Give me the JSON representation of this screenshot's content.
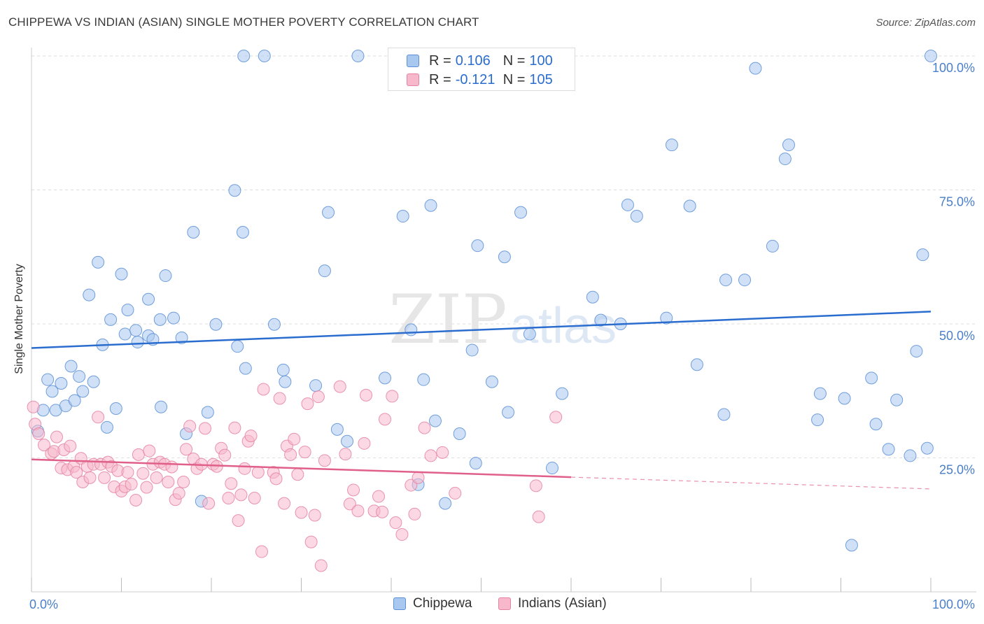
{
  "title": "CHIPPEWA VS INDIAN (ASIAN) SINGLE MOTHER POVERTY CORRELATION CHART",
  "source": "Source: ZipAtlas.com",
  "watermark": {
    "zip": "ZIP",
    "atlas": "atlas"
  },
  "legend_box": {
    "rows": [
      {
        "r_label": "R =",
        "r_value": "0.106",
        "n_label": "N =",
        "n_value": "100"
      },
      {
        "r_label": "R =",
        "r_value": "-0.121",
        "n_label": "N =",
        "n_value": "105"
      }
    ]
  },
  "bottom_legend": {
    "series1": "Chippewa",
    "series2": "Indians (Asian)"
  },
  "colors": {
    "chippewa_fill": "#a9c8f0",
    "chippewa_stroke": "#5b8fd6",
    "chippewa_line": "#2a6dcf",
    "asian_fill": "#f7b8cc",
    "asian_stroke": "#e582a3",
    "asian_line": "#e0608a",
    "tick_text": "#4a7fc9",
    "grid": "#dddddd"
  },
  "chart_data": {
    "type": "scatter",
    "title": "CHIPPEWA VS INDIAN (ASIAN) SINGLE MOTHER POVERTY CORRELATION CHART",
    "xlabel": "",
    "ylabel": "Single Mother Poverty",
    "xlim": [
      0,
      100
    ],
    "ylim": [
      0,
      100
    ],
    "x_tick_labels": [
      "0.0%",
      "100.0%"
    ],
    "y_ticks": [
      25,
      50,
      75,
      100
    ],
    "y_tick_labels": [
      "25.0%",
      "50.0%",
      "75.0%",
      "100.0%"
    ],
    "grid": true,
    "series": [
      {
        "name": "Chippewa",
        "trend": {
          "x": [
            0,
            100
          ],
          "y": [
            45.5,
            52.3
          ],
          "dashed_from": null
        },
        "points": [
          [
            0.7,
            30.0
          ],
          [
            1.3,
            33.9
          ],
          [
            1.8,
            39.6
          ],
          [
            2.3,
            37.4
          ],
          [
            2.7,
            33.9
          ],
          [
            3.3,
            38.9
          ],
          [
            3.8,
            34.7
          ],
          [
            4.4,
            42.1
          ],
          [
            4.8,
            35.7
          ],
          [
            5.3,
            40.2
          ],
          [
            5.7,
            37.4
          ],
          [
            6.4,
            55.4
          ],
          [
            6.9,
            39.2
          ],
          [
            7.4,
            61.5
          ],
          [
            7.9,
            46.1
          ],
          [
            8.4,
            30.7
          ],
          [
            8.8,
            50.8
          ],
          [
            9.4,
            34.2
          ],
          [
            10.0,
            59.3
          ],
          [
            10.4,
            48.1
          ],
          [
            10.7,
            52.6
          ],
          [
            11.6,
            48.8
          ],
          [
            11.8,
            46.6
          ],
          [
            13.0,
            47.8
          ],
          [
            13.5,
            47.1
          ],
          [
            13.0,
            54.6
          ],
          [
            14.3,
            50.8
          ],
          [
            14.4,
            34.5
          ],
          [
            14.9,
            59.0
          ],
          [
            15.8,
            51.1
          ],
          [
            16.7,
            47.4
          ],
          [
            17.2,
            29.5
          ],
          [
            18.0,
            67.1
          ],
          [
            18.9,
            16.9
          ],
          [
            19.6,
            33.5
          ],
          [
            20.5,
            49.9
          ],
          [
            22.6,
            74.9
          ],
          [
            22.9,
            45.8
          ],
          [
            23.5,
            67.1
          ],
          [
            23.8,
            41.7
          ],
          [
            23.6,
            100
          ],
          [
            25.9,
            100
          ],
          [
            27.0,
            49.9
          ],
          [
            28.0,
            41.4
          ],
          [
            28.2,
            39.2
          ],
          [
            31.6,
            38.5
          ],
          [
            32.6,
            59.9
          ],
          [
            33.0,
            70.8
          ],
          [
            34.0,
            30.3
          ],
          [
            35.1,
            28.1
          ],
          [
            36.3,
            100
          ],
          [
            39.3,
            39.9
          ],
          [
            41.3,
            70.1
          ],
          [
            42.2,
            48.9
          ],
          [
            43.0,
            20.0
          ],
          [
            43.6,
            39.6
          ],
          [
            44.4,
            72.1
          ],
          [
            44.9,
            31.9
          ],
          [
            46.0,
            16.5
          ],
          [
            47.6,
            29.5
          ],
          [
            49.0,
            45.1
          ],
          [
            49.4,
            24.0
          ],
          [
            49.6,
            64.6
          ],
          [
            51.2,
            39.2
          ],
          [
            52.6,
            62.5
          ],
          [
            53.0,
            33.5
          ],
          [
            54.4,
            70.8
          ],
          [
            55.4,
            48.1
          ],
          [
            57.9,
            23.1
          ],
          [
            59.0,
            37.0
          ],
          [
            62.4,
            55.0
          ],
          [
            63.3,
            50.7
          ],
          [
            65.5,
            50.0
          ],
          [
            66.3,
            72.2
          ],
          [
            67.3,
            70.1
          ],
          [
            70.6,
            51.1
          ],
          [
            71.2,
            83.4
          ],
          [
            73.2,
            72.0
          ],
          [
            74.0,
            42.4
          ],
          [
            77.0,
            33.1
          ],
          [
            77.2,
            58.2
          ],
          [
            79.3,
            58.2
          ],
          [
            80.5,
            97.7
          ],
          [
            82.4,
            64.5
          ],
          [
            83.8,
            80.8
          ],
          [
            84.2,
            83.4
          ],
          [
            87.4,
            32.1
          ],
          [
            87.7,
            37.0
          ],
          [
            90.4,
            36.1
          ],
          [
            91.2,
            8.7
          ],
          [
            93.4,
            39.9
          ],
          [
            93.9,
            31.3
          ],
          [
            95.3,
            26.6
          ],
          [
            96.2,
            35.8
          ],
          [
            97.7,
            25.4
          ],
          [
            98.4,
            44.9
          ],
          [
            99.6,
            26.8
          ],
          [
            99.1,
            62.9
          ],
          [
            100,
            100
          ]
        ]
      },
      {
        "name": "Indians (Asian)",
        "trend": {
          "x": [
            0,
            60,
            100
          ],
          "y": [
            24.7,
            21.4,
            19.2
          ],
          "dashed_from": 60
        },
        "points": [
          [
            0.2,
            34.5
          ],
          [
            0.4,
            31.3
          ],
          [
            0.8,
            29.5
          ],
          [
            1.4,
            27.4
          ],
          [
            2.2,
            25.8
          ],
          [
            2.5,
            26.2
          ],
          [
            2.8,
            28.9
          ],
          [
            3.3,
            23.1
          ],
          [
            3.6,
            26.5
          ],
          [
            4.0,
            22.8
          ],
          [
            4.3,
            27.2
          ],
          [
            4.7,
            23.4
          ],
          [
            5.0,
            22.3
          ],
          [
            5.5,
            24.9
          ],
          [
            5.7,
            20.5
          ],
          [
            6.2,
            23.4
          ],
          [
            6.5,
            21.3
          ],
          [
            6.9,
            23.8
          ],
          [
            7.4,
            32.6
          ],
          [
            7.7,
            23.8
          ],
          [
            8.1,
            21.3
          ],
          [
            8.5,
            24.2
          ],
          [
            8.9,
            23.4
          ],
          [
            9.2,
            19.6
          ],
          [
            9.6,
            22.6
          ],
          [
            10.0,
            18.8
          ],
          [
            10.4,
            19.6
          ],
          [
            10.7,
            22.3
          ],
          [
            11.1,
            20.1
          ],
          [
            11.6,
            17.1
          ],
          [
            11.9,
            25.6
          ],
          [
            12.4,
            22.1
          ],
          [
            12.8,
            19.5
          ],
          [
            13.1,
            26.3
          ],
          [
            13.5,
            23.8
          ],
          [
            13.9,
            21.3
          ],
          [
            14.3,
            24.2
          ],
          [
            14.8,
            23.8
          ],
          [
            15.2,
            20.5
          ],
          [
            15.6,
            23.3
          ],
          [
            16.0,
            17.2
          ],
          [
            16.4,
            18.4
          ],
          [
            16.9,
            20.5
          ],
          [
            17.2,
            26.6
          ],
          [
            17.6,
            30.9
          ],
          [
            18.0,
            24.8
          ],
          [
            18.4,
            23.0
          ],
          [
            18.9,
            23.8
          ],
          [
            19.3,
            30.5
          ],
          [
            19.7,
            16.5
          ],
          [
            20.2,
            23.8
          ],
          [
            20.6,
            23.4
          ],
          [
            21.1,
            26.8
          ],
          [
            21.5,
            25.5
          ],
          [
            21.9,
            17.5
          ],
          [
            22.2,
            20.2
          ],
          [
            22.6,
            30.6
          ],
          [
            23.0,
            13.3
          ],
          [
            23.3,
            18.1
          ],
          [
            23.7,
            23.0
          ],
          [
            24.1,
            28.1
          ],
          [
            24.4,
            29.1
          ],
          [
            24.8,
            17.5
          ],
          [
            25.2,
            22.3
          ],
          [
            25.6,
            7.5
          ],
          [
            25.8,
            37.8
          ],
          [
            26.9,
            22.3
          ],
          [
            27.2,
            21.1
          ],
          [
            27.6,
            36.1
          ],
          [
            28.1,
            16.5
          ],
          [
            28.4,
            27.2
          ],
          [
            28.8,
            25.6
          ],
          [
            29.2,
            28.5
          ],
          [
            29.6,
            21.9
          ],
          [
            30.0,
            14.8
          ],
          [
            30.4,
            26.1
          ],
          [
            30.7,
            35.1
          ],
          [
            31.1,
            9.3
          ],
          [
            31.5,
            14.3
          ],
          [
            31.9,
            36.4
          ],
          [
            32.2,
            4.9
          ],
          [
            32.6,
            24.5
          ],
          [
            34.3,
            38.3
          ],
          [
            34.9,
            25.7
          ],
          [
            35.4,
            16.4
          ],
          [
            35.8,
            19.0
          ],
          [
            36.3,
            15.1
          ],
          [
            37.0,
            27.7
          ],
          [
            37.2,
            36.7
          ],
          [
            38.1,
            15.1
          ],
          [
            38.6,
            17.8
          ],
          [
            39.0,
            14.9
          ],
          [
            39.3,
            32.2
          ],
          [
            40.1,
            36.5
          ],
          [
            40.5,
            12.9
          ],
          [
            41.2,
            10.7
          ],
          [
            42.2,
            19.9
          ],
          [
            43.0,
            21.3
          ],
          [
            42.6,
            14.5
          ],
          [
            44.4,
            25.4
          ],
          [
            43.7,
            30.6
          ],
          [
            45.7,
            26.0
          ],
          [
            47.1,
            18.4
          ],
          [
            56.4,
            14.0
          ],
          [
            56.1,
            19.8
          ],
          [
            58.3,
            32.6
          ]
        ]
      }
    ]
  }
}
